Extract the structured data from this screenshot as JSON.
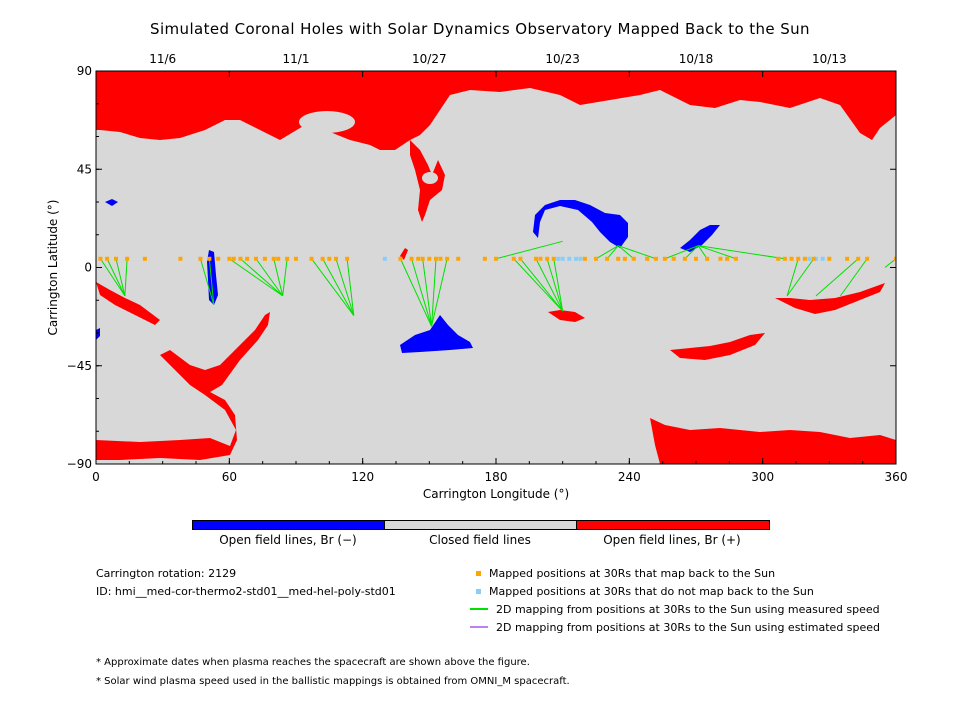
{
  "title": "Simulated Coronal Holes with Solar Dynamics Observatory Mapped Back to the Sun",
  "chart_data": {
    "type": "map",
    "xlabel": "Carrington Longitude (°)",
    "ylabel": "Carrington Latitude (°)",
    "xlim": [
      0,
      360
    ],
    "ylim": [
      -90,
      90
    ],
    "x_ticks": [
      "0",
      "60",
      "120",
      "180",
      "240",
      "300",
      "360"
    ],
    "y_ticks": [
      "90",
      "45",
      "0",
      "−45",
      "−90"
    ],
    "top_axis_dates": [
      {
        "label": "11/6",
        "lon": 30
      },
      {
        "label": "11/1",
        "lon": 90
      },
      {
        "label": "10/27",
        "lon": 150
      },
      {
        "label": "10/23",
        "lon": 210
      },
      {
        "label": "10/18",
        "lon": 270
      },
      {
        "label": "10/13",
        "lon": 330
      }
    ],
    "colors": {
      "open_negative": "#0000ff",
      "closed": "#d8d8d8",
      "open_positive": "#ff0000",
      "mapped_back": "#ffa500",
      "not_mapped_back": "#87cefa",
      "measured_speed_line": "#00e000",
      "estimated_speed_line": "#c080f0"
    },
    "mapped_points_lat": 4,
    "mapped_points_lon": [
      2,
      5,
      9,
      14,
      22,
      38,
      47,
      51,
      55,
      60,
      62,
      65,
      68,
      72,
      76,
      80,
      82,
      86,
      90,
      97,
      102,
      105,
      108,
      113,
      137,
      142,
      145,
      147,
      150,
      153,
      155,
      158,
      163,
      175,
      180,
      188,
      191,
      198,
      200,
      203,
      206,
      220,
      225,
      230,
      235,
      238,
      242,
      248,
      252,
      256,
      260,
      265,
      270,
      275,
      281,
      284,
      288,
      307,
      310,
      313,
      316,
      319,
      323,
      330,
      338,
      343,
      347,
      360
    ],
    "unmapped_points_lon": [
      130,
      208,
      210,
      213,
      216,
      218,
      321,
      324,
      327
    ],
    "mapping_lines": [
      [
        [
          2,
          4
        ],
        [
          13,
          -13
        ]
      ],
      [
        [
          5,
          4
        ],
        [
          13,
          -13
        ]
      ],
      [
        [
          9,
          4
        ],
        [
          13,
          -13
        ]
      ],
      [
        [
          14,
          4
        ],
        [
          13,
          -13
        ]
      ],
      [
        [
          47,
          4
        ],
        [
          53,
          -17
        ]
      ],
      [
        [
          51,
          4
        ],
        [
          53,
          -17
        ]
      ],
      [
        [
          60,
          4
        ],
        [
          84,
          -13
        ]
      ],
      [
        [
          65,
          4
        ],
        [
          84,
          -13
        ]
      ],
      [
        [
          72,
          4
        ],
        [
          84,
          -13
        ]
      ],
      [
        [
          80,
          4
        ],
        [
          84,
          -13
        ]
      ],
      [
        [
          86,
          4
        ],
        [
          84,
          -13
        ]
      ],
      [
        [
          97,
          4
        ],
        [
          116,
          -22
        ]
      ],
      [
        [
          102,
          4
        ],
        [
          116,
          -22
        ]
      ],
      [
        [
          108,
          4
        ],
        [
          116,
          -22
        ]
      ],
      [
        [
          113,
          4
        ],
        [
          116,
          -22
        ]
      ],
      [
        [
          137,
          4
        ],
        [
          151,
          -27
        ]
      ],
      [
        [
          142,
          4
        ],
        [
          151,
          -27
        ]
      ],
      [
        [
          147,
          4
        ],
        [
          151,
          -27
        ]
      ],
      [
        [
          153,
          4
        ],
        [
          151,
          -27
        ]
      ],
      [
        [
          158,
          4
        ],
        [
          151,
          -27
        ]
      ],
      [
        [
          180,
          4
        ],
        [
          210,
          12
        ]
      ],
      [
        [
          188,
          4
        ],
        [
          210,
          -20
        ]
      ],
      [
        [
          191,
          4
        ],
        [
          210,
          -20
        ]
      ],
      [
        [
          198,
          4
        ],
        [
          210,
          -20
        ]
      ],
      [
        [
          203,
          4
        ],
        [
          210,
          -20
        ]
      ],
      [
        [
          206,
          4
        ],
        [
          210,
          -20
        ]
      ],
      [
        [
          225,
          4
        ],
        [
          235,
          10
        ]
      ],
      [
        [
          230,
          4
        ],
        [
          235,
          10
        ]
      ],
      [
        [
          242,
          4
        ],
        [
          235,
          10
        ]
      ],
      [
        [
          252,
          4
        ],
        [
          235,
          10
        ]
      ],
      [
        [
          256,
          4
        ],
        [
          271,
          10
        ]
      ],
      [
        [
          265,
          4
        ],
        [
          271,
          10
        ]
      ],
      [
        [
          275,
          4
        ],
        [
          271,
          10
        ]
      ],
      [
        [
          288,
          4
        ],
        [
          271,
          10
        ]
      ],
      [
        [
          310,
          4
        ],
        [
          271,
          10
        ]
      ],
      [
        [
          316,
          4
        ],
        [
          311,
          -13
        ]
      ],
      [
        [
          323,
          4
        ],
        [
          311,
          -13
        ]
      ],
      [
        [
          343,
          4
        ],
        [
          324,
          -13
        ]
      ],
      [
        [
          347,
          4
        ],
        [
          335,
          -13
        ]
      ],
      [
        [
          360,
          4
        ],
        [
          355,
          0
        ]
      ]
    ]
  },
  "colorbar": {
    "negative_label": "Open field lines, Br (−)",
    "closed_label": "Closed field lines",
    "positive_label": "Open field lines, Br (+)"
  },
  "info": {
    "rotation": "Carrington rotation: 2129",
    "id": "ID: hmi__med-cor-thermo2-std01__med-hel-poly-std01"
  },
  "legend": {
    "mapped_back": "Mapped positions at 30Rs that map back to the Sun",
    "not_mapped_back": "Mapped positions at 30Rs that do not map back to the Sun",
    "measured_speed": "2D mapping from positions at 30Rs to the Sun using measured speed",
    "estimated_speed": "2D mapping from positions at 30Rs to the Sun using estimated speed"
  },
  "notes": {
    "dates": "* Approximate dates when plasma reaches the spacecraft are shown above the figure.",
    "speed": "* Solar wind plasma speed used in the ballistic mappings is obtained from OMNI_M spacecraft."
  }
}
